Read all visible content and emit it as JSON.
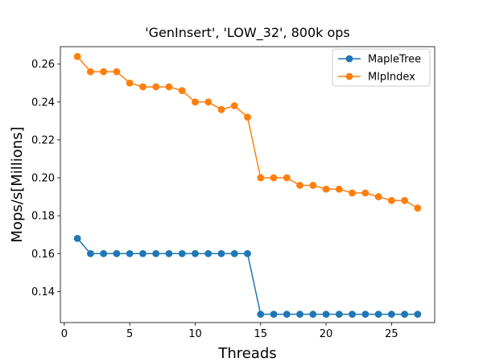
{
  "chart_data": {
    "type": "line",
    "title": "'GenInsert', 'LOW_32', 800k ops",
    "xlabel": "Threads",
    "ylabel": "Mops/s[Millions]",
    "xlim": [
      -0.3,
      28.3
    ],
    "ylim": [
      0.1236,
      0.2692
    ],
    "xticks": [
      0,
      5,
      10,
      15,
      20,
      25
    ],
    "xtick_labels": [
      "0",
      "5",
      "10",
      "15",
      "20",
      "25"
    ],
    "yticks": [
      0.14,
      0.16,
      0.18,
      0.2,
      0.22,
      0.24,
      0.26
    ],
    "ytick_labels": [
      "0.14",
      "0.16",
      "0.18",
      "0.20",
      "0.22",
      "0.24",
      "0.26"
    ],
    "grid": false,
    "legend_position": "top-right",
    "x": [
      1,
      2,
      3,
      4,
      5,
      6,
      7,
      8,
      9,
      10,
      11,
      12,
      13,
      14,
      15,
      16,
      17,
      18,
      19,
      20,
      21,
      22,
      23,
      24,
      25,
      26,
      27
    ],
    "series": [
      {
        "name": "MapleTree",
        "color": "#1f77b4",
        "marker": "circle",
        "values": [
          0.168,
          0.16,
          0.16,
          0.16,
          0.16,
          0.16,
          0.16,
          0.16,
          0.16,
          0.16,
          0.16,
          0.16,
          0.16,
          0.16,
          0.128,
          0.128,
          0.128,
          0.128,
          0.128,
          0.128,
          0.128,
          0.128,
          0.128,
          0.128,
          0.128,
          0.128,
          0.128
        ]
      },
      {
        "name": "MlpIndex",
        "color": "#ff7f0e",
        "marker": "circle",
        "values": [
          0.264,
          0.256,
          0.256,
          0.256,
          0.25,
          0.248,
          0.248,
          0.248,
          0.246,
          0.24,
          0.24,
          0.236,
          0.238,
          0.232,
          0.2,
          0.2,
          0.2,
          0.196,
          0.196,
          0.194,
          0.194,
          0.192,
          0.192,
          0.19,
          0.188,
          0.188,
          0.184
        ]
      }
    ]
  }
}
